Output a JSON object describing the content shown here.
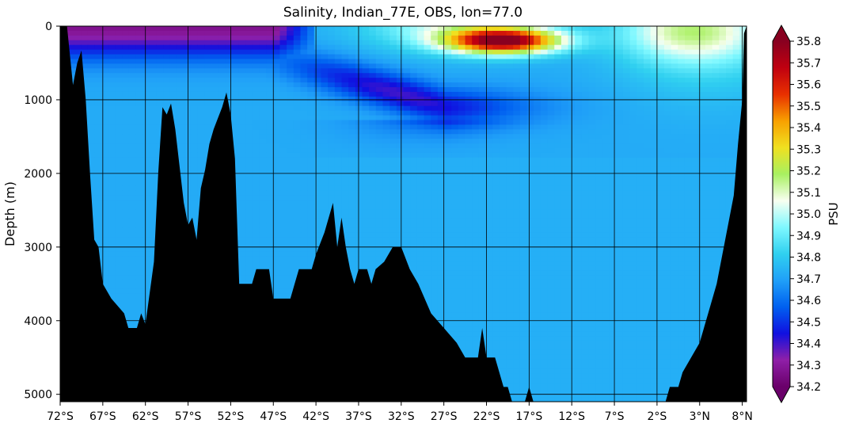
{
  "chart_data": {
    "type": "heatmap",
    "title": "Salinity, Indian_77E, OBS, lon=77.0",
    "ylabel": "Depth (m)",
    "xlabel": "",
    "x_ticks": [
      "72°S",
      "67°S",
      "62°S",
      "57°S",
      "52°S",
      "47°S",
      "42°S",
      "37°S",
      "32°S",
      "27°S",
      "22°S",
      "17°S",
      "12°S",
      "7°S",
      "2°S",
      "3°N",
      "8°N"
    ],
    "x_tick_values": [
      -72,
      -67,
      -62,
      -57,
      -52,
      -47,
      -42,
      -37,
      -32,
      -27,
      -22,
      -17,
      -12,
      -7,
      -2,
      3,
      8
    ],
    "xlim": [
      -72,
      8.5
    ],
    "y_ticks": [
      "0",
      "1000",
      "2000",
      "3000",
      "4000",
      "5000"
    ],
    "y_tick_values": [
      0,
      1000,
      2000,
      3000,
      4000,
      5000
    ],
    "ylim": [
      5100,
      0
    ],
    "y_inverted": true,
    "grid": true,
    "colorbar": {
      "label": "PSU",
      "min": 34.2,
      "max": 35.8,
      "ticks": [
        "35.8",
        "35.7",
        "35.6",
        "35.5",
        "35.4",
        "35.3",
        "35.2",
        "35.1",
        "35.0",
        "34.9",
        "34.8",
        "34.7",
        "34.6",
        "34.5",
        "34.4",
        "34.3",
        "34.2"
      ],
      "extend": "both",
      "colormap": [
        "#6a006a",
        "#8f1fa8",
        "#1010e0",
        "#0060f0",
        "#20a0f8",
        "#30d0f0",
        "#7ff8ff",
        "#f8fff0",
        "#a8f060",
        "#f0e020",
        "#f8a000",
        "#e83000",
        "#c00010",
        "#880020"
      ]
    },
    "bathymetry_depth_m": [
      [
        -72,
        0
      ],
      [
        -71.2,
        0
      ],
      [
        -70.5,
        800
      ],
      [
        -70,
        500
      ],
      [
        -69.5,
        330
      ],
      [
        -69,
        1000
      ],
      [
        -68.5,
        2000
      ],
      [
        -68,
        2900
      ],
      [
        -67.5,
        3000
      ],
      [
        -67,
        3500
      ],
      [
        -66,
        3700
      ],
      [
        -64.5,
        3900
      ],
      [
        -64,
        4100
      ],
      [
        -63,
        4100
      ],
      [
        -62.5,
        3900
      ],
      [
        -62,
        4050
      ],
      [
        -61,
        3200
      ],
      [
        -60.5,
        2000
      ],
      [
        -60,
        1100
      ],
      [
        -59.5,
        1200
      ],
      [
        -59,
        1050
      ],
      [
        -58.5,
        1400
      ],
      [
        -58,
        1900
      ],
      [
        -57.5,
        2400
      ],
      [
        -57,
        2700
      ],
      [
        -56.5,
        2600
      ],
      [
        -56,
        2900
      ],
      [
        -55.5,
        2200
      ],
      [
        -55,
        1950
      ],
      [
        -54.5,
        1600
      ],
      [
        -54,
        1400
      ],
      [
        -53.5,
        1250
      ],
      [
        -53,
        1100
      ],
      [
        -52.5,
        900
      ],
      [
        -52,
        1200
      ],
      [
        -51.5,
        1800
      ],
      [
        -51,
        3500
      ],
      [
        -49.5,
        3500
      ],
      [
        -49,
        3300
      ],
      [
        -47.5,
        3300
      ],
      [
        -47,
        3700
      ],
      [
        -45,
        3700
      ],
      [
        -44.5,
        3500
      ],
      [
        -44,
        3300
      ],
      [
        -42.5,
        3300
      ],
      [
        -42,
        3100
      ],
      [
        -41,
        2800
      ],
      [
        -40,
        2400
      ],
      [
        -39.5,
        3000
      ],
      [
        -39,
        2600
      ],
      [
        -38.5,
        3000
      ],
      [
        -38,
        3300
      ],
      [
        -37.5,
        3500
      ],
      [
        -37,
        3300
      ],
      [
        -36,
        3300
      ],
      [
        -35.5,
        3500
      ],
      [
        -35,
        3300
      ],
      [
        -34,
        3200
      ],
      [
        -33,
        3000
      ],
      [
        -32,
        3000
      ],
      [
        -31,
        3300
      ],
      [
        -30,
        3500
      ],
      [
        -28.5,
        3900
      ],
      [
        -27,
        4100
      ],
      [
        -25.5,
        4300
      ],
      [
        -24.5,
        4500
      ],
      [
        -23,
        4500
      ],
      [
        -22.5,
        4100
      ],
      [
        -22,
        4500
      ],
      [
        -21,
        4500
      ],
      [
        -20,
        4900
      ],
      [
        -19.5,
        4900
      ],
      [
        -19,
        5100
      ],
      [
        -17.5,
        5100
      ],
      [
        -17,
        4900
      ],
      [
        -16.5,
        5100
      ],
      [
        -1,
        5100
      ],
      [
        -0.5,
        4900
      ],
      [
        0.5,
        4900
      ],
      [
        1,
        4700
      ],
      [
        2,
        4500
      ],
      [
        3,
        4300
      ],
      [
        4,
        3900
      ],
      [
        5,
        3500
      ],
      [
        6,
        2900
      ],
      [
        7,
        2300
      ],
      [
        7.5,
        1600
      ],
      [
        8,
        1000
      ],
      [
        8.2,
        100
      ],
      [
        8.5,
        0
      ]
    ]
  }
}
